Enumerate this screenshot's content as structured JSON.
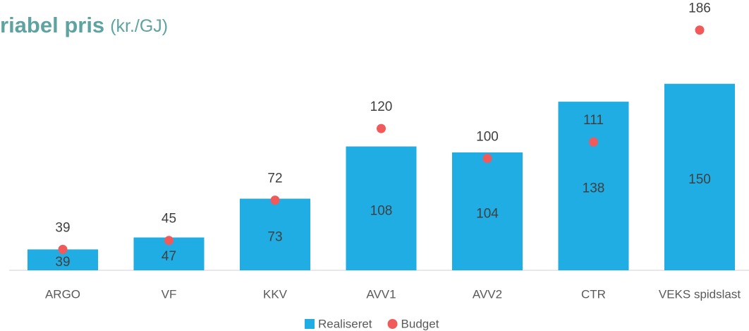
{
  "chart_data": {
    "type": "bar",
    "title": "riabel pris",
    "subtitle": "(kr./GJ)",
    "categories": [
      "ARGO",
      "VF",
      "KKV",
      "AVV1",
      "AVV2",
      "CTR",
      "VEKS spidslast"
    ],
    "series": [
      {
        "name": "Realiseret",
        "type": "bar",
        "color": "#1fade4",
        "values": [
          39,
          47,
          73,
          108,
          104,
          138,
          150
        ]
      },
      {
        "name": "Budget",
        "type": "scatter",
        "color": "#f15a5a",
        "values": [
          39,
          45,
          72,
          120,
          100,
          111,
          186
        ]
      }
    ],
    "ylim": [
      25,
      200
    ],
    "legend": "bottom"
  }
}
